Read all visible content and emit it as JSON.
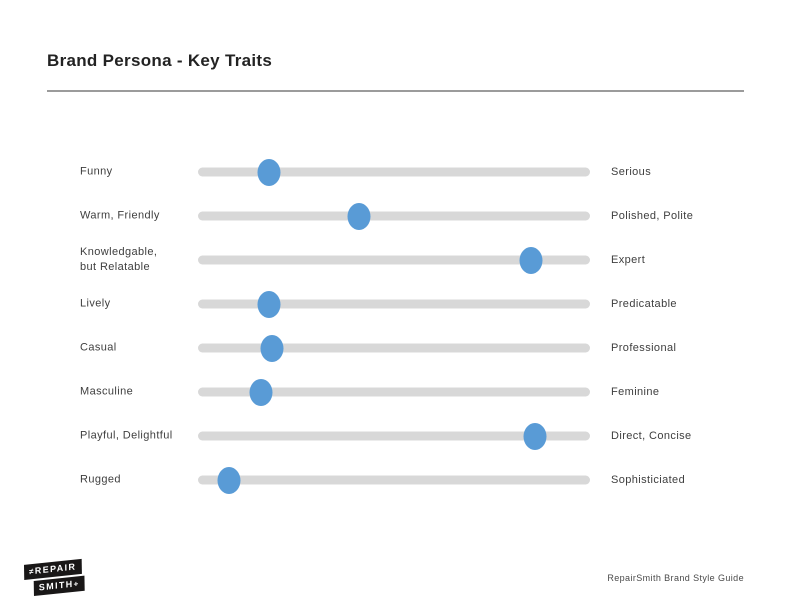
{
  "header": {
    "title": "Brand Persona - Key Traits"
  },
  "traits": {
    "scale": {
      "min": 0,
      "max": 100
    },
    "rows": [
      {
        "left": "Funny",
        "right": "Serious",
        "value": 18
      },
      {
        "left": "Warm, Friendly",
        "right": "Polished, Polite",
        "value": 41
      },
      {
        "left": "Knowledgable,\nbut Relatable",
        "right": "Expert",
        "value": 85
      },
      {
        "left": "Lively",
        "right": "Predicatable",
        "value": 18
      },
      {
        "left": "Casual",
        "right": "Professional",
        "value": 19
      },
      {
        "left": "Masculine",
        "right": "Feminine",
        "value": 16
      },
      {
        "left": "Playful, Delightful",
        "right": "Direct, Concise",
        "value": 86
      },
      {
        "left": "Rugged",
        "right": "Sophisticiated",
        "value": 8
      }
    ]
  },
  "footer": {
    "credit": "RepairSmith Brand Style Guide",
    "logo": {
      "line1": "REPAIR",
      "line2": "SMITH",
      "prefix_glyph": "≠",
      "suffix_glyph": "+"
    }
  },
  "colors": {
    "knob": "#599bd6",
    "track": "#d8d8d8",
    "rule": "#9b9b9b",
    "logo_bg": "#191717",
    "text": "#3e3e3e"
  }
}
